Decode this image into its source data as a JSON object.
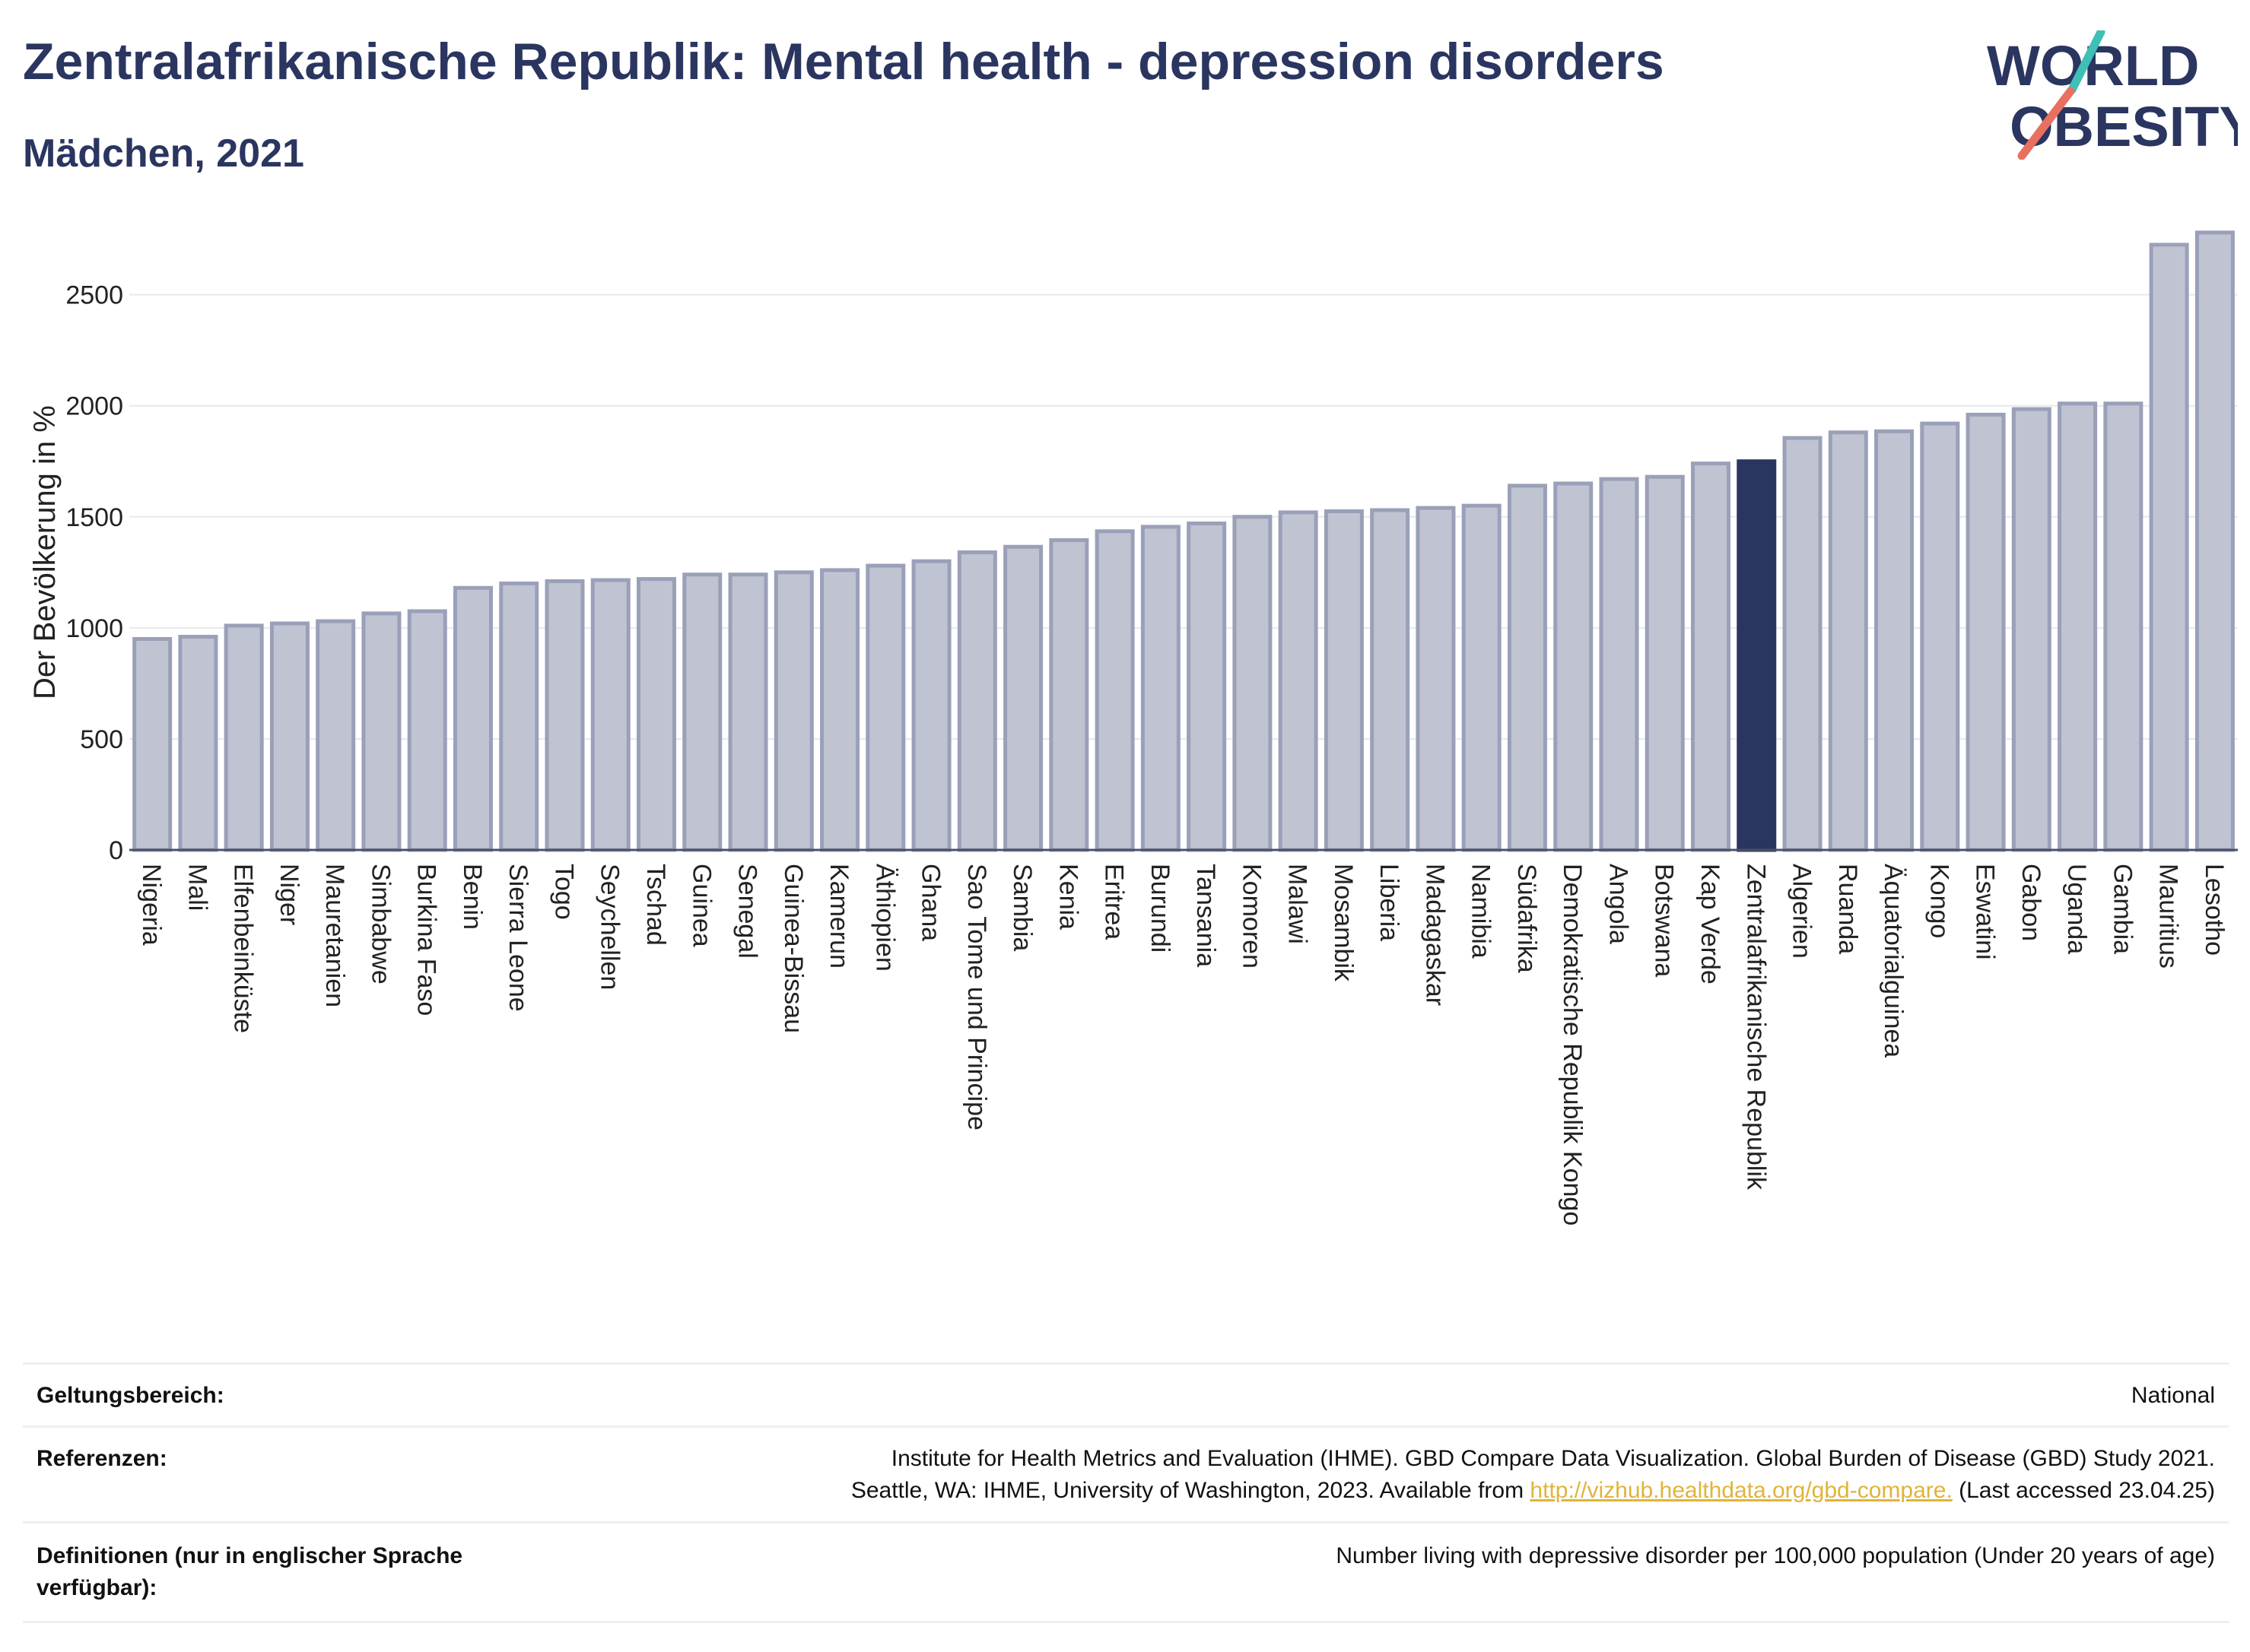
{
  "title": "Zentralafrikanische Republik: Mental health - depression disorders",
  "subtitle": "Mädchen, 2021",
  "logo": {
    "line1": "WORLD",
    "line2": "OBESITY"
  },
  "colors": {
    "highlight": "#2a3560",
    "bar": "#bfc3d2",
    "bar_border": "#9aa0b8",
    "title": "#2a3560",
    "link": "#e0b43a"
  },
  "chart_data": {
    "type": "bar",
    "ylabel": "Der Bevölkerung in %",
    "ylim": [
      0,
      2800
    ],
    "yticks": [
      0,
      500,
      1000,
      1500,
      2000,
      2500
    ],
    "grid": true,
    "highlight": "Zentralafrikanische Republik",
    "categories": [
      "Nigeria",
      "Mali",
      "Elfenbeinküste",
      "Niger",
      "Mauretanien",
      "Simbabwe",
      "Burkina Faso",
      "Benin",
      "Sierra Leone",
      "Togo",
      "Seychellen",
      "Tschad",
      "Guinea",
      "Senegal",
      "Guinea-Bissau",
      "Kamerun",
      "Äthiopien",
      "Ghana",
      "Sao Tome und Principe",
      "Sambia",
      "Kenia",
      "Eritrea",
      "Burundi",
      "Tansania",
      "Komoren",
      "Malawi",
      "Mosambik",
      "Liberia",
      "Madagaskar",
      "Namibia",
      "Südafrika",
      "Demokratische Republik Kongo",
      "Angola",
      "Botswana",
      "Kap Verde",
      "Zentralafrikanische Republik",
      "Algerien",
      "Ruanda",
      "Äquatorialguinea",
      "Kongo",
      "Eswatini",
      "Gabon",
      "Uganda",
      "Gambia",
      "Mauritius",
      "Lesotho"
    ],
    "values": [
      950,
      960,
      1010,
      1020,
      1030,
      1065,
      1075,
      1180,
      1200,
      1210,
      1215,
      1220,
      1240,
      1240,
      1250,
      1260,
      1280,
      1300,
      1340,
      1365,
      1395,
      1435,
      1455,
      1470,
      1500,
      1520,
      1525,
      1530,
      1540,
      1550,
      1640,
      1650,
      1670,
      1680,
      1740,
      1750,
      1855,
      1880,
      1885,
      1920,
      1960,
      1985,
      2010,
      2010,
      2725,
      2780
    ]
  },
  "footer": {
    "scope_label": "Geltungsbereich:",
    "scope_value": "National",
    "refs_label": "Referenzen:",
    "refs_line1": "Institute for Health Metrics and Evaluation (IHME). GBD Compare Data Visualization. Global Burden of Disease (GBD) Study 2021.",
    "refs_line2_pre": "Seattle, WA: IHME, University of Washington, 2023. Available from ",
    "refs_link": "http://vizhub.healthdata.org/gbd-compare.",
    "refs_line2_post": " (Last accessed 23.04.25)",
    "defs_label_1": "Definitionen (nur in englischer Sprache",
    "defs_label_2": "verfügbar):",
    "defs_value": "Number living with depressive disorder per 100,000 population (Under 20 years of age)"
  }
}
